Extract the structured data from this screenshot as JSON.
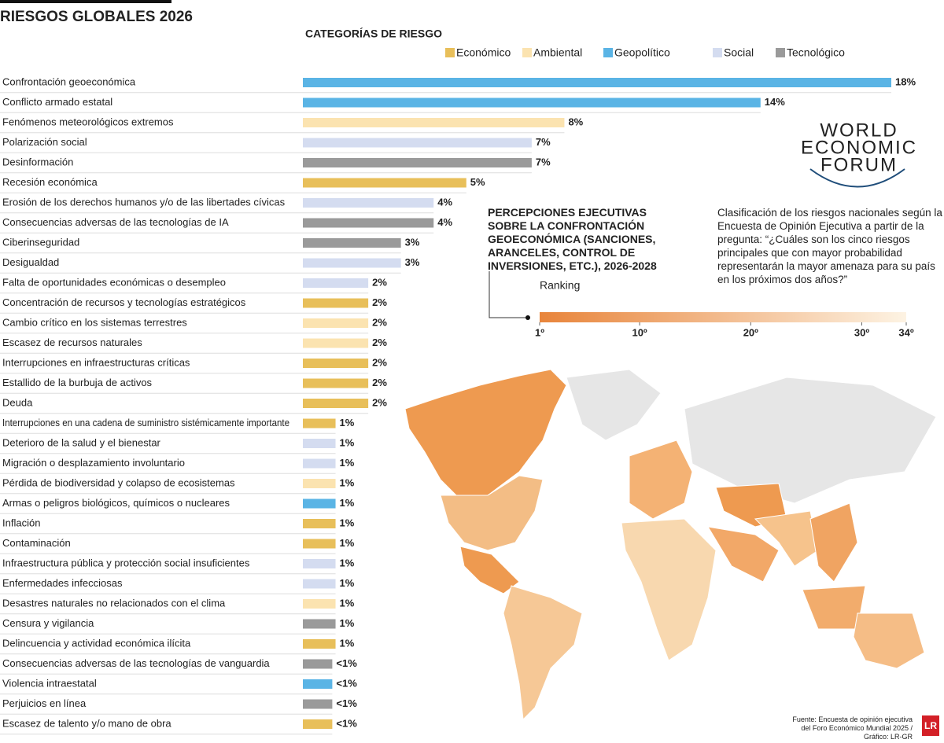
{
  "chart_data": {
    "type": "bar",
    "orientation": "horizontal",
    "title": "RIESGOS GLOBALES 2026",
    "legend_title": "CATEGORÍAS DE RIESGO",
    "legend": [
      {
        "name": "Económico",
        "color": "#e8bf5a"
      },
      {
        "name": "Ambiental",
        "color": "#fbe3b0"
      },
      {
        "name": "Geopolítico",
        "color": "#5ab4e5"
      },
      {
        "name": "Social",
        "color": "#d4dcf0"
      },
      {
        "name": "Tecnológico",
        "color": "#9a9a9a"
      }
    ],
    "categories": [
      "Confrontación geoeconómica",
      "Conflicto armado estatal",
      "Fenómenos meteorológicos extremos",
      "Polarización social",
      "Desinformación",
      "Recesión económica",
      "Erosión de los derechos humanos y/o de las libertades cívicas",
      "Consecuencias adversas de las tecnologías de IA",
      "Ciberinseguridad",
      "Desigualdad",
      "Falta de oportunidades económicas o desempleo",
      "Concentración de recursos y tecnologías estratégicos",
      "Cambio crítico en los sistemas terrestres",
      "Escasez de recursos naturales",
      "Interrupciones en infraestructuras críticas",
      "Estallido de la burbuja de activos",
      "Deuda",
      "Interrupciones en una cadena de suministro sistémicamente importante",
      "Deterioro de la salud y el bienestar",
      "Migración o desplazamiento involuntario",
      "Pérdida de biodiversidad y colapso de ecosistemas",
      "Armas o peligros biológicos, químicos o nucleares",
      "Inflación",
      "Contaminación",
      "Infraestructura pública y protección social insuficientes",
      "Enfermedades infecciosas",
      "Desastres naturales no relacionados con el clima",
      "Censura y vigilancia",
      "Delincuencia y actividad económica ilícita",
      "Consecuencias adversas de las tecnologías de vanguardia",
      "Violencia intraestatal",
      "Perjuicios en línea",
      "Escasez de talento y/o mano de obra"
    ],
    "values": [
      18,
      14,
      8,
      7,
      7,
      5,
      4,
      4,
      3,
      3,
      2,
      2,
      2,
      2,
      2,
      2,
      2,
      1,
      1,
      1,
      1,
      1,
      1,
      1,
      1,
      1,
      1,
      1,
      1,
      0.9,
      0.9,
      0.9,
      0.9
    ],
    "value_labels": [
      "18%",
      "14%",
      "8%",
      "7%",
      "7%",
      "5%",
      "4%",
      "4%",
      "3%",
      "3%",
      "2%",
      "2%",
      "2%",
      "2%",
      "2%",
      "2%",
      "2%",
      "1%",
      "1%",
      "1%",
      "1%",
      "1%",
      "1%",
      "1%",
      "1%",
      "1%",
      "1%",
      "1%",
      "1%",
      "<1%",
      "<1%",
      "<1%",
      "<1%"
    ],
    "colors": [
      "#5ab4e5",
      "#5ab4e5",
      "#fbe3b0",
      "#d4dcf0",
      "#9a9a9a",
      "#e8bf5a",
      "#d4dcf0",
      "#9a9a9a",
      "#9a9a9a",
      "#d4dcf0",
      "#d4dcf0",
      "#e8bf5a",
      "#fbe3b0",
      "#fbe3b0",
      "#e8bf5a",
      "#e8bf5a",
      "#e8bf5a",
      "#e8bf5a",
      "#d4dcf0",
      "#d4dcf0",
      "#fbe3b0",
      "#5ab4e5",
      "#e8bf5a",
      "#e8bf5a",
      "#d4dcf0",
      "#d4dcf0",
      "#fbe3b0",
      "#9a9a9a",
      "#e8bf5a",
      "#9a9a9a",
      "#5ab4e5",
      "#9a9a9a",
      "#e8bf5a"
    ],
    "xlim": [
      0,
      18
    ]
  },
  "logo": [
    "WORLD",
    "ECONOMIC",
    "FORUM"
  ],
  "map": {
    "title": "PERCEPCIONES EJECUTIVAS SOBRE LA CONFRONTACIÓN GEOECONÓMICA (SANCIONES, ARANCELES, CONTROL DE INVERSIONES, ETC.), 2026-2028",
    "description": "Clasificación de los riesgos nacionales según la Encuesta de Opinión Ejecutiva a partir de la pregunta: “¿Cuáles son los cinco riesgos principales que con mayor probabilidad representarán la mayor amenaza para su país en los próximos dos años?”",
    "scale_title": "Ranking",
    "scale_range": [
      1,
      34
    ],
    "scale_colors": [
      "#e8843a",
      "#fdf3e3"
    ],
    "scale_ticks": [
      {
        "value": 1,
        "label": "1º"
      },
      {
        "value": 10,
        "label": "10º"
      },
      {
        "value": 20,
        "label": "20º"
      },
      {
        "value": 30,
        "label": "30º"
      },
      {
        "value": 34,
        "label": "34º"
      }
    ]
  },
  "source": "Fuente: Encuesta de opinión ejecutiva del Foro Económico Mundial 2025 / Gráfico: LR-GR",
  "brand": "LR"
}
